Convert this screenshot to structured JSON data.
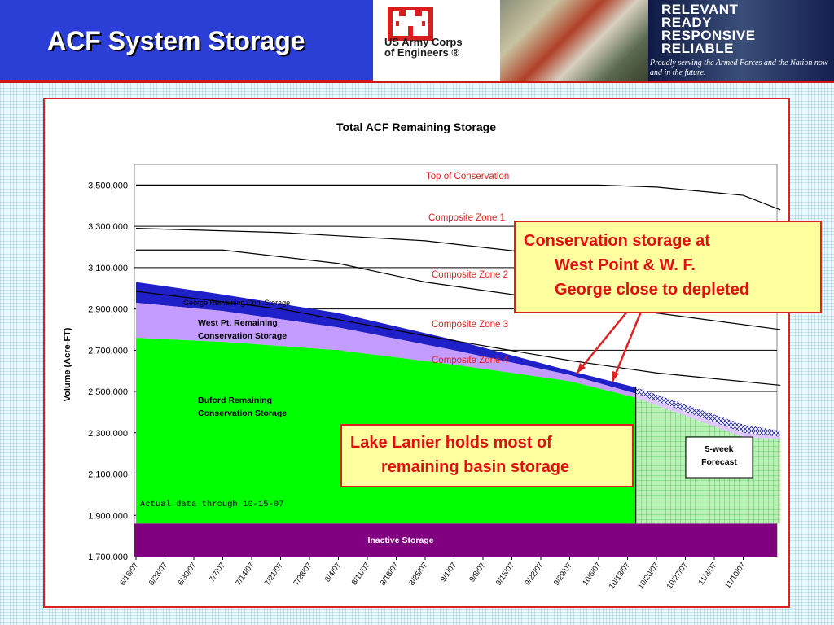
{
  "page": {
    "title": "ACF System Storage"
  },
  "banner": {
    "usace": "US Army Corps\nof Engineers ®",
    "slogan_line1": "RELEVANT",
    "slogan_line2": "READY",
    "slogan_line3": "RESPONSIVE",
    "slogan_line4": "RELIABLE",
    "tagline": "Proudly serving the Armed Forces and the Nation now and in the future."
  },
  "callouts": {
    "west_point": [
      "Conservation storage at",
      "West Point & W. F.",
      "George close to depleted"
    ],
    "lanier": [
      "Lake Lanier holds most of",
      "remaining basin storage"
    ]
  },
  "colors": {
    "buford": "#00ff00",
    "west_point": "#c49bff",
    "george": "#2020c8",
    "inactive": "#800080",
    "label_red": "#e02020"
  },
  "chart_data": {
    "type": "area",
    "title": "Total ACF Remaining Storage",
    "ylabel": "Volume (Acre-FT)",
    "xlabel": "",
    "ylim": [
      1700000,
      3600000
    ],
    "yticks": [
      1700000,
      1900000,
      2100000,
      2300000,
      2500000,
      2700000,
      2900000,
      3100000,
      3300000,
      3500000
    ],
    "ytick_labels": [
      "1,700,000",
      "1,900,000",
      "2,100,000",
      "2,300,000",
      "2,500,000",
      "2,700,000",
      "2,900,000",
      "3,100,000",
      "3,300,000",
      "3,500,000"
    ],
    "x_labels": [
      "6/16/07",
      "6/23/07",
      "6/30/07",
      "7/7/07",
      "7/14/07",
      "7/21/07",
      "7/28/07",
      "8/4/07",
      "8/11/07",
      "8/18/07",
      "8/25/07",
      "9/1/07",
      "9/8/07",
      "9/15/07",
      "9/22/07",
      "9/29/07",
      "10/6/07",
      "10/13/07",
      "10/20/07",
      "10/27/07",
      "11/3/07",
      "11/10/07"
    ],
    "grid": true,
    "gridlines": [
      3300000,
      3100000,
      2900000,
      2700000,
      2500000,
      2300000,
      2100000,
      1900000
    ],
    "inactive_storage": 1860000,
    "actual_through": "10-15-07",
    "forecast_start": "10/15/07",
    "stack": [
      {
        "name": "Buford Remaining Conservation Storage",
        "points": [
          [
            "6/16/07",
            2760000
          ],
          [
            "7/7/07",
            2740000
          ],
          [
            "8/4/07",
            2700000
          ],
          [
            "9/1/07",
            2630000
          ],
          [
            "9/29/07",
            2550000
          ],
          [
            "10/15/07",
            2470000
          ],
          [
            "11/10/07",
            2280000
          ],
          [
            "11/19/07",
            2270000
          ]
        ]
      },
      {
        "name": "West Pt. Remaining Conservation Storage",
        "points": [
          [
            "6/16/07",
            2930000
          ],
          [
            "7/7/07",
            2890000
          ],
          [
            "8/4/07",
            2810000
          ],
          [
            "9/1/07",
            2700000
          ],
          [
            "9/29/07",
            2580000
          ],
          [
            "10/15/07",
            2490000
          ],
          [
            "11/10/07",
            2300000
          ],
          [
            "11/19/07",
            2280000
          ]
        ]
      },
      {
        "name": "George Remaining Con. Storage",
        "points": [
          [
            "6/16/07",
            3030000
          ],
          [
            "7/7/07",
            2970000
          ],
          [
            "8/4/07",
            2880000
          ],
          [
            "9/1/07",
            2750000
          ],
          [
            "9/29/07",
            2600000
          ],
          [
            "10/15/07",
            2520000
          ],
          [
            "11/10/07",
            2340000
          ],
          [
            "11/19/07",
            2310000
          ]
        ]
      }
    ],
    "zones": [
      {
        "name": "Top of Conservation",
        "points": [
          [
            "6/16/07",
            3500000
          ],
          [
            "10/6/07",
            3500000
          ],
          [
            "10/20/07",
            3490000
          ],
          [
            "11/10/07",
            3450000
          ],
          [
            "11/19/07",
            3380000
          ]
        ]
      },
      {
        "name": "Composite Zone 1",
        "points": [
          [
            "6/16/07",
            3290000
          ],
          [
            "7/21/07",
            3270000
          ],
          [
            "8/25/07",
            3230000
          ],
          [
            "9/29/07",
            3150000
          ],
          [
            "10/20/07",
            3080000
          ],
          [
            "11/10/07",
            3050000
          ],
          [
            "11/19/07",
            3040000
          ]
        ]
      },
      {
        "name": "Composite Zone 2",
        "points": [
          [
            "6/16/07",
            3185000
          ],
          [
            "7/7/07",
            3185000
          ],
          [
            "8/4/07",
            3120000
          ],
          [
            "8/25/07",
            3030000
          ],
          [
            "9/22/07",
            2950000
          ],
          [
            "10/20/07",
            2880000
          ],
          [
            "11/19/07",
            2800000
          ]
        ]
      },
      {
        "name": "Composite Zone 3",
        "points": [
          [
            "6/16/07",
            2985000
          ],
          [
            "7/21/07",
            2900000
          ],
          [
            "8/25/07",
            2770000
          ],
          [
            "9/29/07",
            2650000
          ],
          [
            "10/20/07",
            2590000
          ],
          [
            "11/19/07",
            2530000
          ]
        ]
      },
      {
        "name": "Composite Zone 4",
        "points": []
      }
    ],
    "annotations": {
      "inactive": "Inactive Storage",
      "forecast": "5-week\nForecast",
      "actual": "Actual data through 10-15-07"
    }
  }
}
